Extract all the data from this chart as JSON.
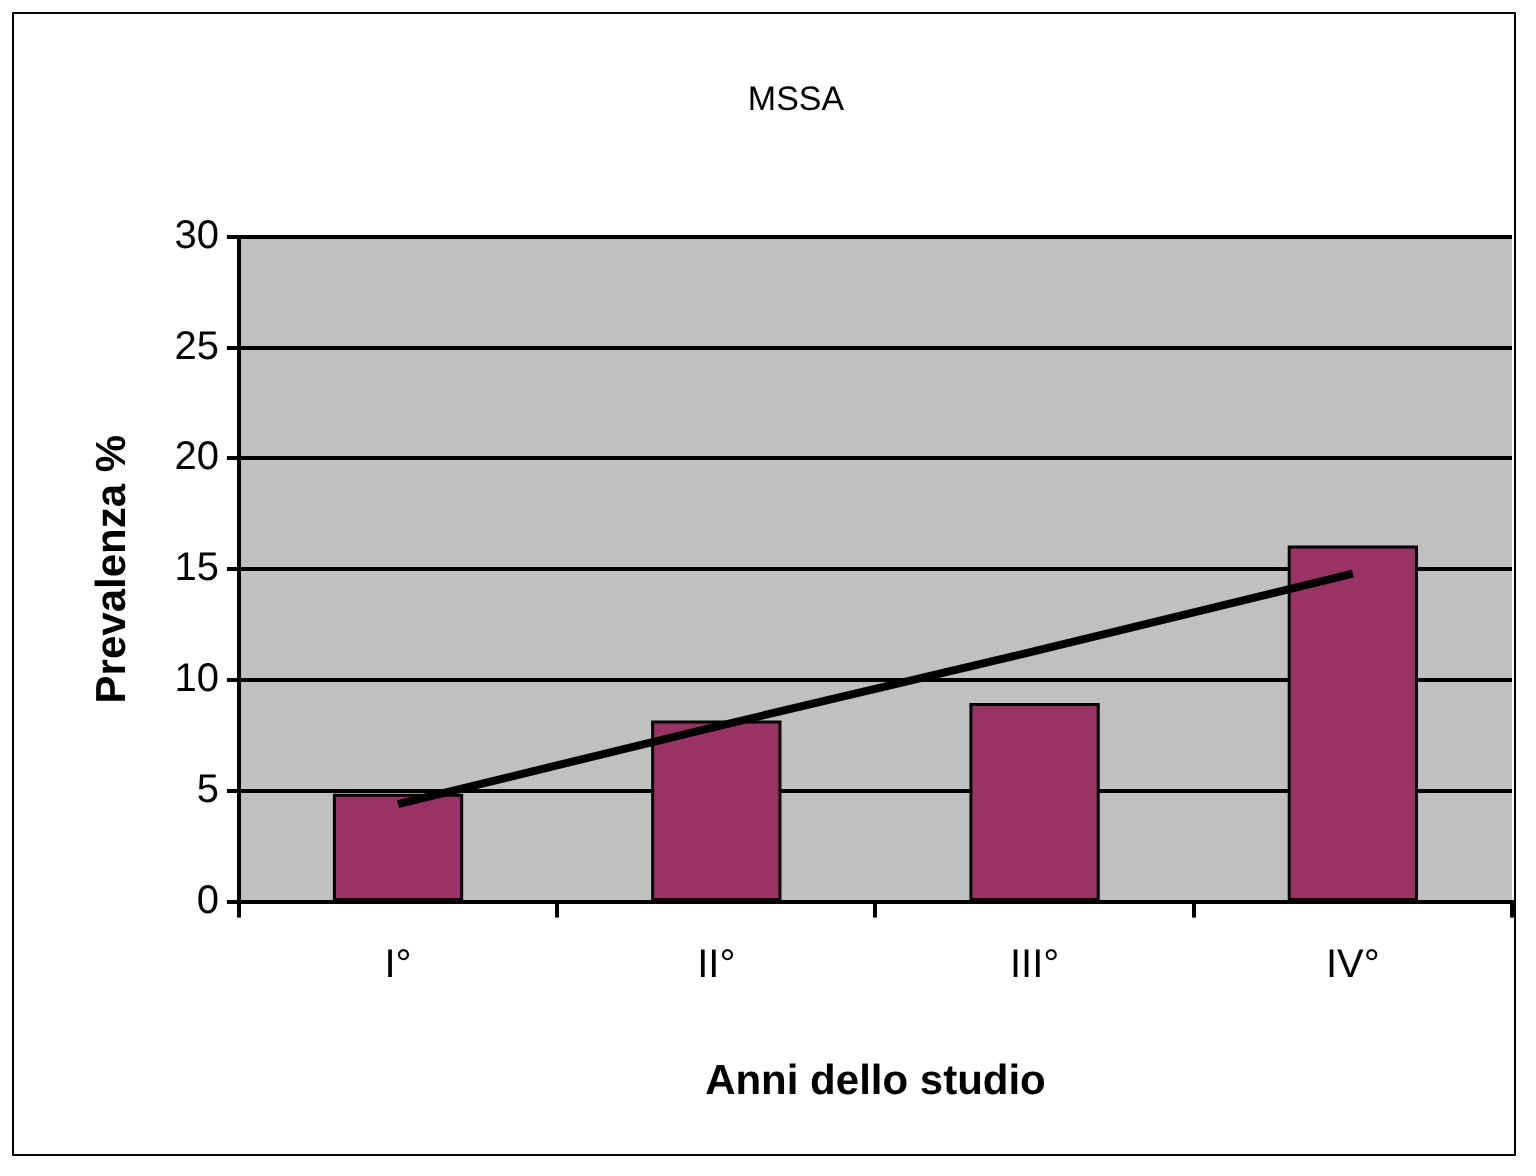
{
  "chart_data": {
    "type": "bar",
    "title": "MSSA",
    "xlabel": "Anni dello studio",
    "ylabel": "Prevalenza %",
    "categories": [
      "I°",
      "II°",
      "III°",
      "IV°"
    ],
    "series": [
      {
        "color": "#993366",
        "values": [
          4.8,
          8.1,
          8.9,
          16
        ]
      },
      {
        "type": "line",
        "color": "#000000",
        "marker": "none",
        "values": [
          4.4,
          7.9,
          11.3,
          14.8
        ]
      }
    ],
    "ylim": [
      0,
      30
    ],
    "yticks": [
      0,
      5,
      10,
      15,
      20,
      25,
      30
    ],
    "grid": "y",
    "legend": false
  }
}
